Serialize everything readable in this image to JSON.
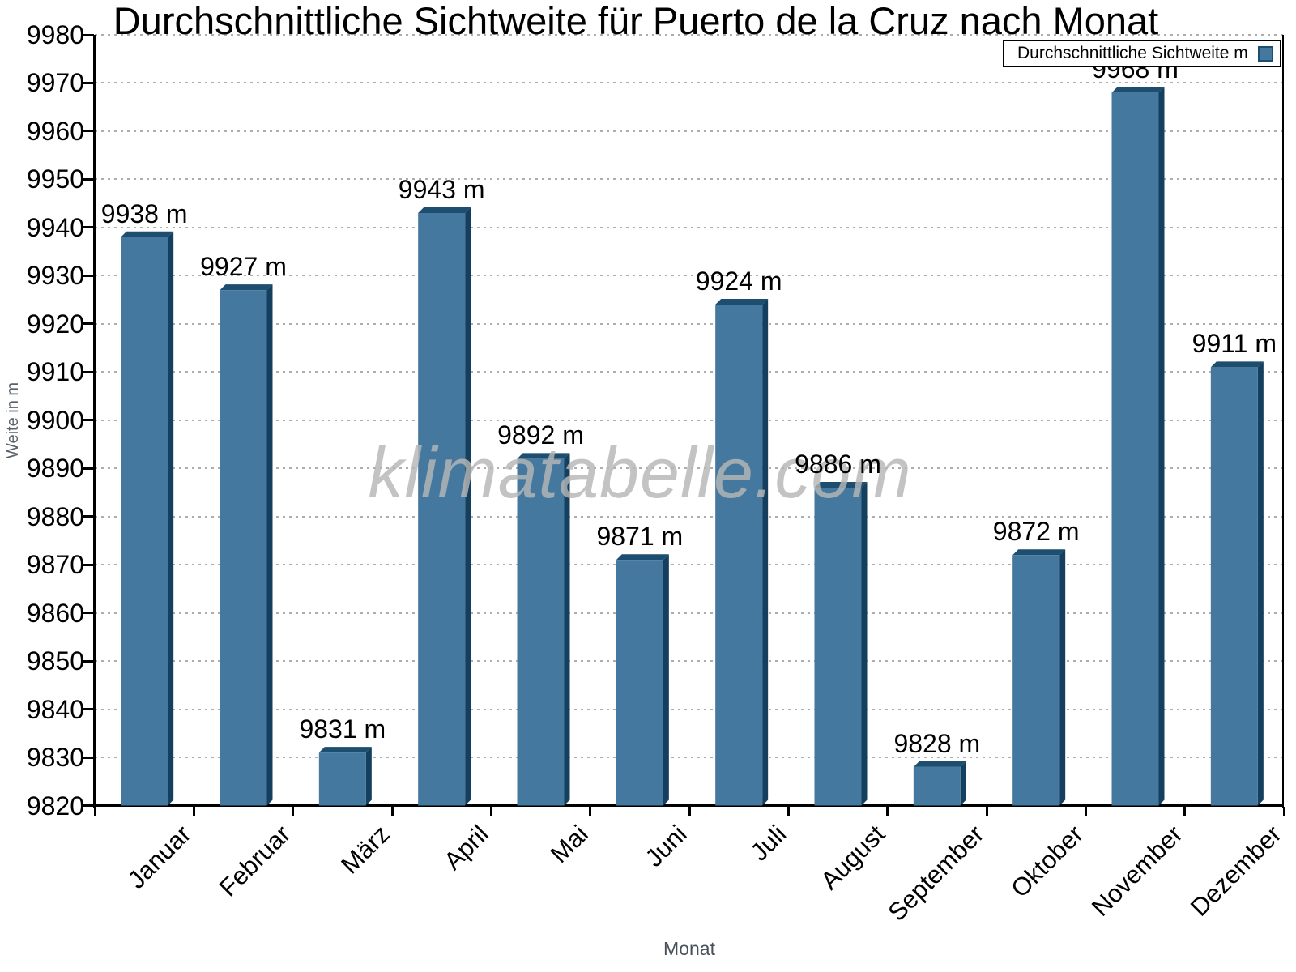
{
  "title": "Durchschnittliche Sichtweite für Puerto de la Cruz nach Monat",
  "legend": {
    "label": "Durchschnittliche Sichtweite m"
  },
  "watermark": "klimatabelle.com",
  "colors": {
    "bar_face": "#44789e",
    "bar_top": "#1d4e6f",
    "bar_side": "#143f5e",
    "grid": "#adadad",
    "axis": "#000000",
    "background": "#ffffff"
  },
  "chart_data": {
    "type": "bar",
    "title": "Durchschnittliche Sichtweite für Puerto de la Cruz nach Monat",
    "series_name": "Durchschnittliche Sichtweite m",
    "categories": [
      "Januar",
      "Februar",
      "März",
      "April",
      "Mai",
      "Juni",
      "Juli",
      "August",
      "September",
      "Oktober",
      "November",
      "Dezember"
    ],
    "values": [
      9938,
      9927,
      9831,
      9943,
      9892,
      9871,
      9924,
      9886,
      9828,
      9872,
      9968,
      9911
    ],
    "unit": "m",
    "value_label_format": "{value} m",
    "xlabel": "Monat",
    "ylabel": "Weite in m",
    "ylim": [
      9820,
      9980
    ],
    "ytick_step": 10,
    "yticks": [
      9820,
      9830,
      9840,
      9850,
      9860,
      9870,
      9880,
      9890,
      9900,
      9910,
      9920,
      9930,
      9940,
      9950,
      9960,
      9970,
      9980
    ],
    "grid": "horizontal-dotted",
    "legend_position": "top-right",
    "bar_style": "3d"
  }
}
